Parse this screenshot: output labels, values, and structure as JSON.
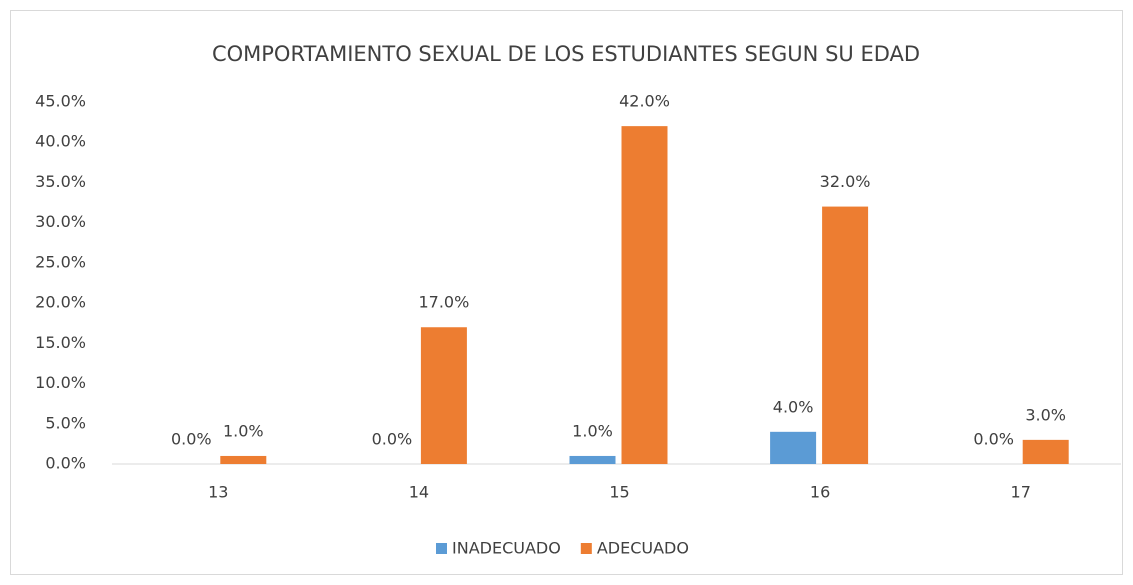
{
  "chart_data": {
    "type": "bar",
    "title": "COMPORTAMIENTO SEXUAL DE LOS ESTUDIANTES SEGUN SU EDAD",
    "categories": [
      "13",
      "14",
      "15",
      "16",
      "17"
    ],
    "series": [
      {
        "name": "INADECUADO",
        "color": "#5b9bd5",
        "values": [
          0,
          0,
          1,
          4,
          0
        ],
        "value_labels": [
          "0.0%",
          "0.0%",
          "1.0%",
          "4.0%",
          "0.0%"
        ]
      },
      {
        "name": "ADECUADO",
        "color": "#ed7d31",
        "values": [
          1,
          17,
          42,
          32,
          3
        ],
        "value_labels": [
          "1.0%",
          "17.0%",
          "42.0%",
          "32.0%",
          "3.0%"
        ]
      }
    ],
    "ylim": [
      0,
      45
    ],
    "yticks": [
      {
        "value": 0,
        "label": "0.0%"
      },
      {
        "value": 5,
        "label": "5.0%"
      },
      {
        "value": 10,
        "label": "10.0%"
      },
      {
        "value": 15,
        "label": "15.0%"
      },
      {
        "value": 20,
        "label": "20.0%"
      },
      {
        "value": 25,
        "label": "25.0%"
      },
      {
        "value": 30,
        "label": "30.0%"
      },
      {
        "value": 35,
        "label": "35.0%"
      },
      {
        "value": 40,
        "label": "40.0%"
      },
      {
        "value": 45,
        "label": "45.0%"
      }
    ],
    "grid": false,
    "legend": "bottom"
  }
}
